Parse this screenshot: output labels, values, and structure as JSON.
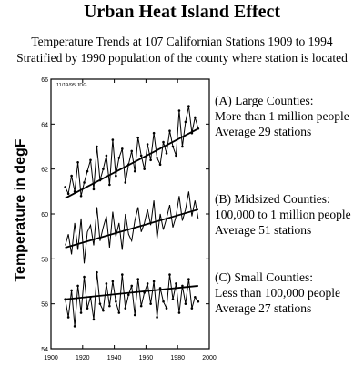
{
  "title": "Urban Heat Island Effect",
  "subtitle_line1": "Temperature Trends at 107 Californian Stations 1909 to 1994",
  "subtitle_line2": "Stratified by 1990 population of the county where station is located",
  "ylabel": "Temperature in degF",
  "stamp": "11/19/95 JDG",
  "groups": [
    {
      "name": "(A) Large Counties:",
      "desc": "More than 1 million people",
      "stations": "Average 29 stations"
    },
    {
      "name": "(B) Midsized Counties:",
      "desc": "100,000 to 1 million people",
      "stations": "Average 51 stations"
    },
    {
      "name": "(C) Small Counties:",
      "desc": "Less than 100,000 people",
      "stations": "Average 27 stations"
    }
  ],
  "chart_data": {
    "type": "line",
    "title": "Urban Heat Island Effect",
    "subtitle": "Temperature Trends at 107 Californian Stations 1909 to 1994 / Stratified by 1990 population of the county where station is located",
    "xlabel": "",
    "ylabel": "Temperature in degF",
    "xlim": [
      1900,
      2000
    ],
    "ylim": [
      54,
      66
    ],
    "xticks": [
      1900,
      1920,
      1940,
      1960,
      1980,
      2000
    ],
    "yticks": [
      54,
      56,
      58,
      60,
      62,
      64,
      66
    ],
    "grid": false,
    "legend": "none",
    "x": [
      1909,
      1911,
      1913,
      1915,
      1917,
      1919,
      1921,
      1923,
      1925,
      1927,
      1929,
      1931,
      1933,
      1935,
      1937,
      1939,
      1941,
      1943,
      1945,
      1947,
      1949,
      1951,
      1953,
      1955,
      1957,
      1959,
      1961,
      1963,
      1965,
      1967,
      1969,
      1971,
      1973,
      1975,
      1977,
      1979,
      1981,
      1983,
      1985,
      1987,
      1989,
      1991,
      1993
    ],
    "series": [
      {
        "name": "(A) Large Counties",
        "values": [
          61.2,
          60.9,
          61.7,
          61.0,
          62.3,
          60.8,
          61.4,
          61.9,
          62.4,
          61.1,
          63.0,
          61.5,
          62.0,
          62.6,
          61.3,
          63.3,
          61.7,
          62.5,
          62.9,
          61.4,
          62.2,
          62.8,
          61.9,
          63.4,
          62.6,
          62.0,
          63.1,
          62.4,
          63.6,
          62.5,
          62.2,
          63.2,
          62.7,
          63.7,
          63.0,
          62.6,
          64.6,
          63.0,
          64.1,
          64.8,
          63.6,
          64.3,
          63.8
        ],
        "trend": [
          60.7,
          63.8
        ]
      },
      {
        "name": "(B) Midsized Counties",
        "values": [
          58.6,
          59.1,
          58.2,
          59.6,
          58.4,
          59.8,
          57.8,
          59.2,
          59.5,
          58.6,
          60.3,
          58.8,
          59.4,
          59.9,
          58.5,
          60.1,
          59.0,
          59.6,
          58.4,
          60.0,
          59.1,
          58.8,
          59.7,
          60.3,
          59.2,
          59.6,
          60.2,
          59.5,
          60.6,
          58.9,
          60.0,
          59.3,
          59.8,
          60.4,
          59.4,
          59.9,
          60.8,
          59.7,
          60.2,
          61.0,
          59.9,
          60.6,
          59.8
        ],
        "trend": [
          58.5,
          60.2
        ]
      },
      {
        "name": "(C) Small Counties",
        "values": [
          56.2,
          55.4,
          56.6,
          55.0,
          56.8,
          55.6,
          57.2,
          55.8,
          56.3,
          55.3,
          57.4,
          56.0,
          55.7,
          56.9,
          55.9,
          57.0,
          56.1,
          55.6,
          57.3,
          55.8,
          56.4,
          56.8,
          55.5,
          57.1,
          55.9,
          56.5,
          56.9,
          56.0,
          57.0,
          55.4,
          56.7,
          56.1,
          55.8,
          57.3,
          56.2,
          56.9,
          55.6,
          56.8,
          56.0,
          57.1,
          55.8,
          56.3,
          56.1
        ],
        "trend": [
          56.2,
          56.8
        ]
      }
    ]
  }
}
